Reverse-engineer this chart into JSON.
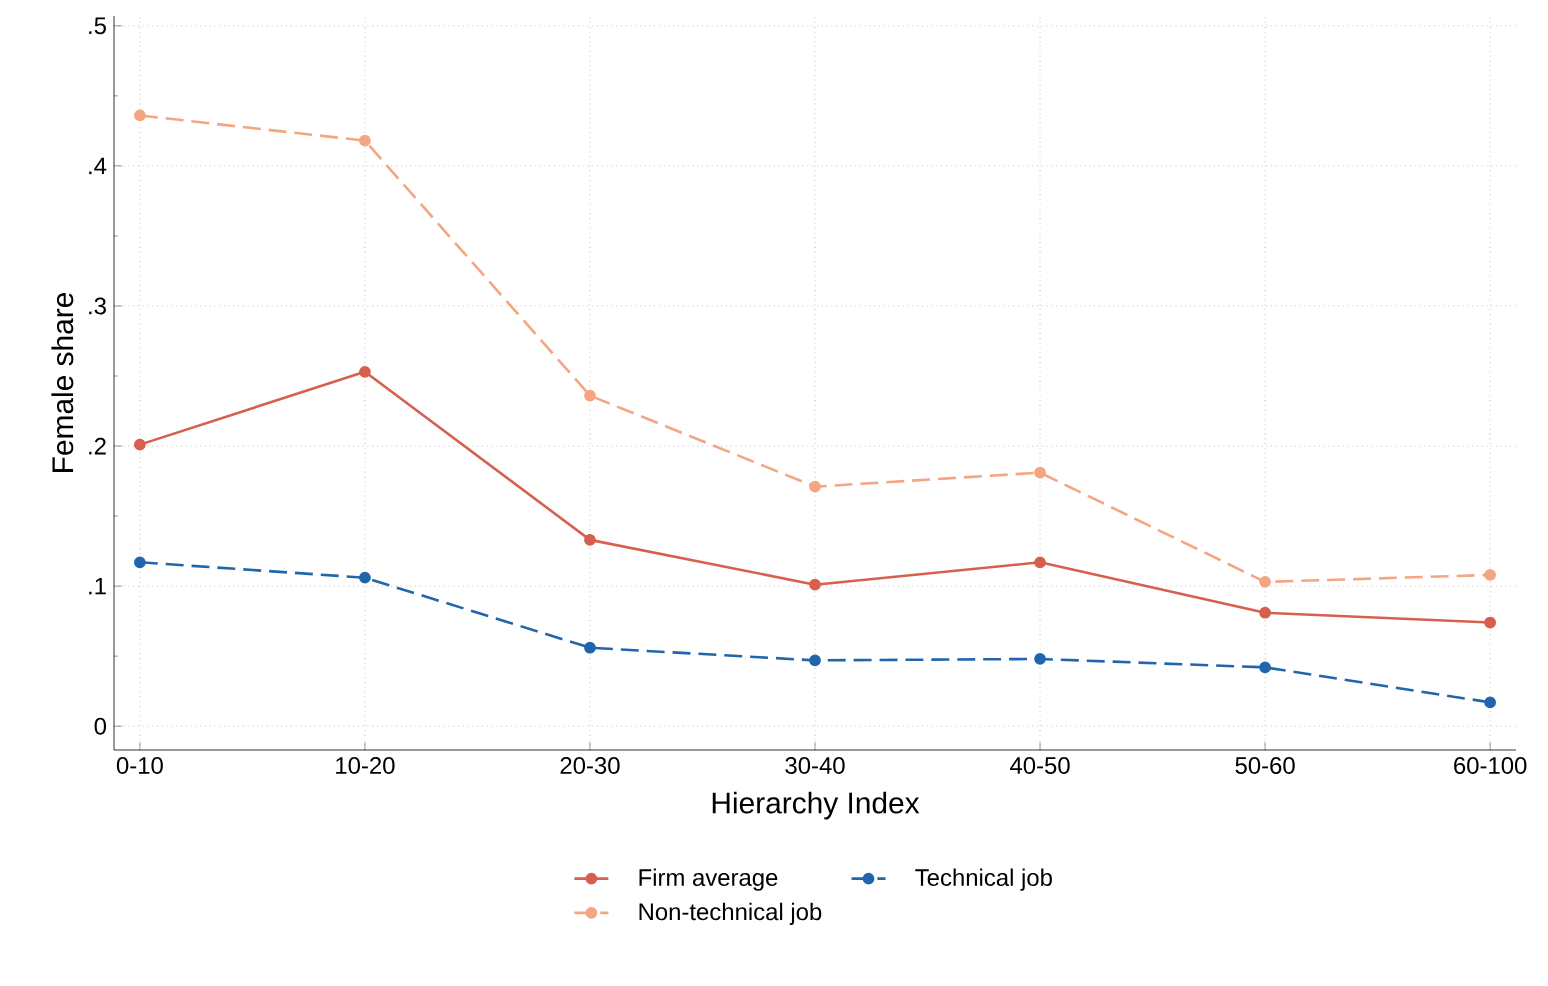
{
  "chart_data": {
    "type": "line",
    "xlabel": "Hierarchy Index",
    "ylabel": "Female share",
    "categories": [
      "0-10",
      "10-20",
      "20-30",
      "30-40",
      "40-50",
      "50-60",
      "60-100"
    ],
    "series": [
      {
        "name": "Firm average",
        "color": "#d6604d",
        "line_style": "solid",
        "values": [
          0.201,
          0.253,
          0.133,
          0.101,
          0.117,
          0.081,
          0.074
        ]
      },
      {
        "name": "Non-technical job",
        "color": "#f4a582",
        "line_style": "dashed",
        "values": [
          0.436,
          0.418,
          0.236,
          0.171,
          0.181,
          0.103,
          0.108
        ]
      },
      {
        "name": "Technical job",
        "color": "#2166ac",
        "line_style": "dashed",
        "values": [
          0.117,
          0.106,
          0.056,
          0.047,
          0.048,
          0.042,
          0.017
        ]
      }
    ],
    "ylim": [
      -0.017,
      0.507
    ],
    "yticks": [
      0,
      {
        "value": 0.1,
        "label": ".1"
      },
      {
        "value": 0.2,
        "label": ".2"
      },
      {
        "value": 0.3,
        "label": ".3"
      },
      {
        "value": 0.4,
        "label": ".4"
      },
      {
        "value": 0.5,
        "label": ".5"
      }
    ],
    "grid": true,
    "legend": "bottom",
    "marker": "circle"
  }
}
